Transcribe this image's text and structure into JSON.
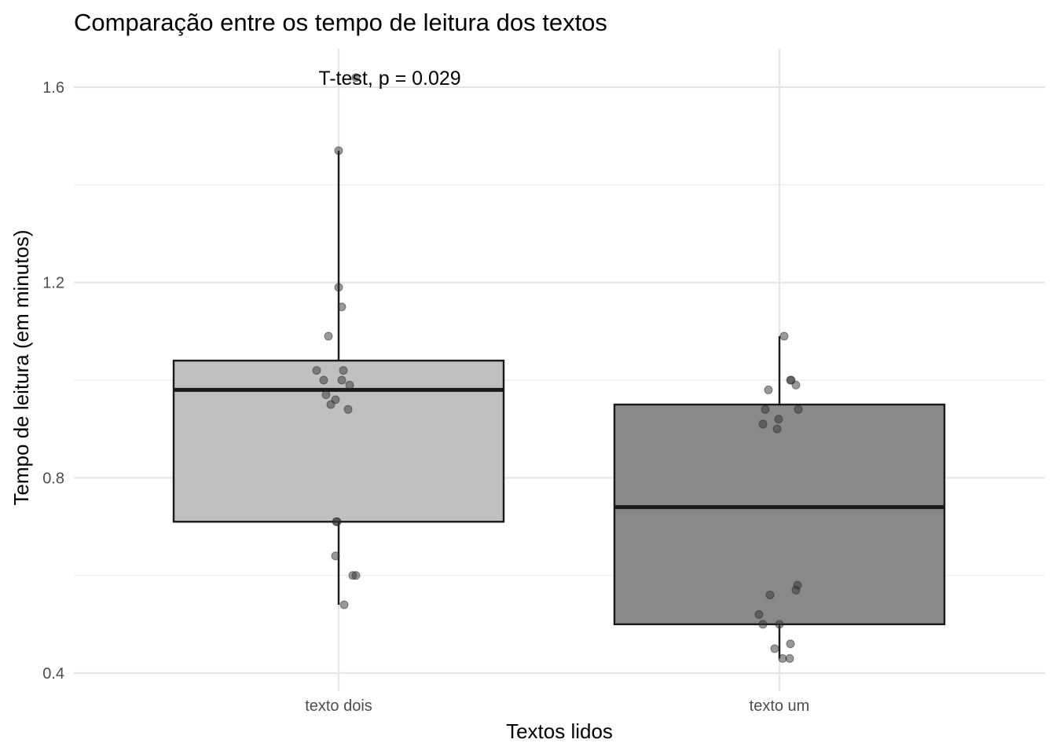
{
  "chart_data": {
    "type": "boxplot",
    "title": "Comparação entre os tempo de leitura dos textos",
    "xlabel": "Textos lidos",
    "ylabel": "Tempo de leitura (em minutos)",
    "ylim": [
      0.38,
      1.68
    ],
    "yticks": [
      0.4,
      0.8,
      1.2,
      1.6
    ],
    "ytick_labels": [
      "0.4",
      "0.8",
      "1.2",
      "1.6"
    ],
    "categories": [
      "texto dois",
      "texto um"
    ],
    "grid": true,
    "annotation": "T-test, p = 0.029",
    "boxes": [
      {
        "category": "texto dois",
        "fill": "#c0c0c0",
        "q1": 0.71,
        "median": 0.98,
        "q3": 1.04,
        "whisker_low": 0.54,
        "whisker_high": 1.47,
        "points": [
          1.62,
          1.47,
          1.19,
          1.15,
          1.09,
          1.02,
          1.02,
          1.0,
          1.0,
          0.99,
          0.97,
          0.96,
          0.95,
          0.94,
          0.71,
          0.71,
          0.64,
          0.6,
          0.6,
          0.54
        ]
      },
      {
        "category": "texto um",
        "fill": "#898989",
        "q1": 0.5,
        "median": 0.74,
        "q3": 0.95,
        "whisker_low": 0.43,
        "whisker_high": 1.09,
        "points": [
          1.09,
          1.0,
          1.0,
          0.99,
          0.98,
          0.94,
          0.94,
          0.92,
          0.91,
          0.9,
          0.58,
          0.57,
          0.56,
          0.52,
          0.5,
          0.5,
          0.46,
          0.45,
          0.43,
          0.43
        ]
      }
    ]
  }
}
